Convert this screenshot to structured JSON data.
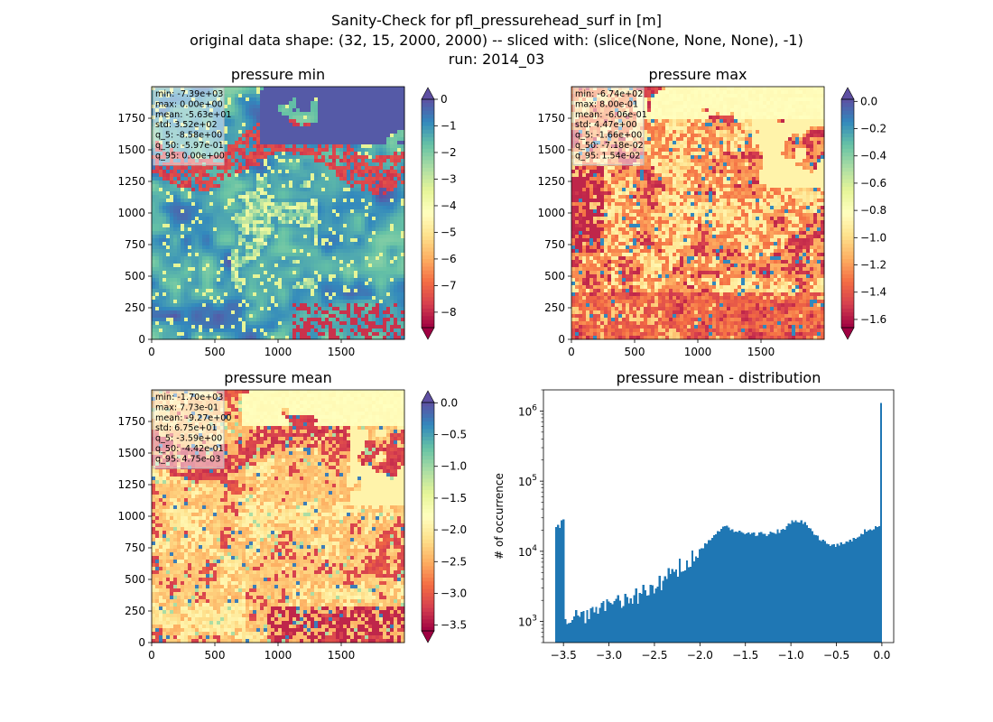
{
  "figure": {
    "title_lines": [
      "Sanity-Check for pfl_pressurehead_surf in [m]",
      "original data shape: (32, 15, 2000, 2000) -- sliced with: (slice(None, None, None), -1)",
      "run: 2014_03"
    ]
  },
  "chart_data": [
    {
      "type": "heatmap",
      "title": "pressure min",
      "xlim": [
        0,
        2000
      ],
      "ylim": [
        0,
        2000
      ],
      "x_ticks": [
        "0",
        "500",
        "1000",
        "1500"
      ],
      "y_ticks": [
        "0",
        "250",
        "500",
        "750",
        "1000",
        "1250",
        "1500",
        "1750"
      ],
      "colormap": "Spectral",
      "color_range": [
        -8.58,
        0.0
      ],
      "colorbar_ticks": [
        "0",
        "−1",
        "−2",
        "−3",
        "−4",
        "−5",
        "−6",
        "−7",
        "−8"
      ],
      "colorbar_extend": "both",
      "stats": [
        "min: -7.39e+03",
        "max: 0.00e+00",
        "mean: -5.63e+01",
        "std: 3.52e+02",
        "q_5: -8.58e+00",
        "q_50: -5.97e-01",
        "q_95: 0.00e+00"
      ]
    },
    {
      "type": "heatmap",
      "title": "pressure max",
      "xlim": [
        0,
        2000
      ],
      "ylim": [
        0,
        2000
      ],
      "x_ticks": [
        "0",
        "500",
        "1000",
        "1500"
      ],
      "y_ticks": [
        "0",
        "250",
        "500",
        "750",
        "1000",
        "1250",
        "1500",
        "1750"
      ],
      "colormap": "Spectral",
      "color_range": [
        -1.66,
        0.0154
      ],
      "colorbar_ticks": [
        "0.0",
        "−0.2",
        "−0.4",
        "−0.6",
        "−0.8",
        "−1.0",
        "−1.2",
        "−1.4",
        "−1.6"
      ],
      "colorbar_extend": "both",
      "stats": [
        "min: -6.74e+02",
        "max: 8.00e-01",
        "mean: -6.06e-01",
        "std: 4.47e+00",
        "q_5: -1.66e+00",
        "q_50: -7.18e-02",
        "q_95: 1.54e-02"
      ]
    },
    {
      "type": "heatmap",
      "title": "pressure mean",
      "xlim": [
        0,
        2000
      ],
      "ylim": [
        0,
        2000
      ],
      "x_ticks": [
        "0",
        "500",
        "1000",
        "1500"
      ],
      "y_ticks": [
        "0",
        "250",
        "500",
        "750",
        "1000",
        "1250",
        "1500",
        "1750"
      ],
      "colormap": "Spectral",
      "color_range": [
        -3.59,
        0.00475
      ],
      "colorbar_ticks": [
        "0.0",
        "−0.5",
        "−1.0",
        "−1.5",
        "−2.0",
        "−2.5",
        "−3.0",
        "−3.5"
      ],
      "colorbar_extend": "both",
      "stats": [
        "min: -1.70e+03",
        "max: 7.73e-01",
        "mean: -9.27e+00",
        "std: 6.75e+01",
        "q_5: -3.59e+00",
        "q_50: -4.42e-01",
        "q_95: 4.75e-03"
      ]
    },
    {
      "type": "bar",
      "title": "pressure mean - distribution",
      "xlabel": "",
      "ylabel": "# of occurrence",
      "xlim": [
        -3.72,
        0.13
      ],
      "ylim": [
        500,
        2000000
      ],
      "y_scale": "log",
      "x_ticks": [
        "−3.5",
        "−3.0",
        "−2.5",
        "−2.0",
        "−1.5",
        "−1.0",
        "−0.5",
        "0.0"
      ],
      "y_ticks": [
        "10^3",
        "10^4",
        "10^5",
        "10^6"
      ],
      "color": "#1f77b4",
      "bins": [
        [
          -3.5,
          1000
        ],
        [
          -3.25,
          1300
        ],
        [
          -3.0,
          1700
        ],
        [
          -2.75,
          2200
        ],
        [
          -2.5,
          3200
        ],
        [
          -2.25,
          5800
        ],
        [
          -2.0,
          10500
        ],
        [
          -1.8,
          20000
        ],
        [
          -1.7,
          22000
        ],
        [
          -1.6,
          19000
        ],
        [
          -1.5,
          17500
        ],
        [
          -1.25,
          17500
        ],
        [
          -1.1,
          20000
        ],
        [
          -0.95,
          28000
        ],
        [
          -0.85,
          26000
        ],
        [
          -0.75,
          18000
        ],
        [
          -0.6,
          12500
        ],
        [
          -0.5,
          12000
        ],
        [
          -0.3,
          15000
        ],
        [
          -0.15,
          21000
        ],
        [
          -0.05,
          22000
        ],
        [
          -0.01,
          25000
        ],
        [
          0.0,
          1300000
        ]
      ]
    }
  ]
}
